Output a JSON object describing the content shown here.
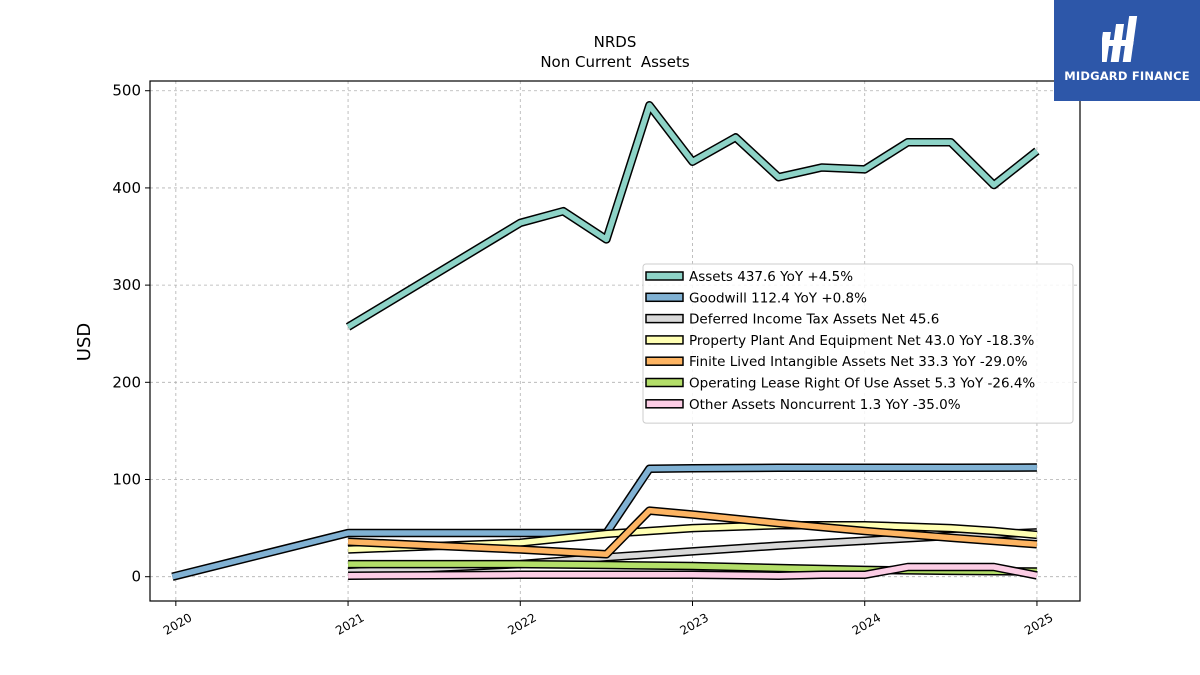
{
  "chart_data": {
    "type": "line",
    "title": "NRDS",
    "subtitle": "Non Current  Assets",
    "ylabel": "USD",
    "xlabel": "",
    "xlim": [
      2019.85,
      2025.25
    ],
    "ylim": [
      -25,
      510
    ],
    "yticks": [
      0,
      100,
      200,
      300,
      400,
      500
    ],
    "xticks": [
      "2020",
      "2021",
      "2022",
      "2023",
      "2024",
      "2025"
    ],
    "grid": true,
    "legend_position": "center-right",
    "series": [
      {
        "name": "Assets",
        "legend": "Assets  437.6 YoY +4.5%",
        "color": "#8dd3c7",
        "points": [
          [
            2021.0,
            257
          ],
          [
            2022.0,
            364
          ],
          [
            2022.25,
            376
          ],
          [
            2022.5,
            347
          ],
          [
            2022.75,
            485
          ],
          [
            2023.0,
            427
          ],
          [
            2023.25,
            452
          ],
          [
            2023.5,
            411
          ],
          [
            2023.75,
            421
          ],
          [
            2024.0,
            419
          ],
          [
            2024.25,
            447
          ],
          [
            2024.5,
            447
          ],
          [
            2024.75,
            403
          ],
          [
            2025.0,
            438
          ]
        ]
      },
      {
        "name": "Goodwill",
        "legend": "Goodwill  112.4 YoY +0.8%",
        "color": "#80b1d3",
        "points": [
          [
            2019.98,
            0
          ],
          [
            2021.0,
            45
          ],
          [
            2022.0,
            45
          ],
          [
            2022.5,
            45
          ],
          [
            2022.75,
            111
          ],
          [
            2023.0,
            111.5
          ],
          [
            2023.5,
            112
          ],
          [
            2024.0,
            112
          ],
          [
            2024.5,
            112
          ],
          [
            2025.0,
            112.4
          ]
        ]
      },
      {
        "name": "Deferred Income Tax Assets Net",
        "legend": "Deferred Income Tax Assets Net  45.6",
        "color": "#d9d9d9",
        "points": [
          [
            2021.0,
            5
          ],
          [
            2022.0,
            13
          ],
          [
            2022.5,
            20
          ],
          [
            2023.0,
            26
          ],
          [
            2023.5,
            32
          ],
          [
            2024.0,
            37
          ],
          [
            2024.5,
            42
          ],
          [
            2025.0,
            45.6
          ]
        ]
      },
      {
        "name": "Property Plant And Equipment Net",
        "legend": "Property Plant And Equipment Net  43.0 YoY -18.3%",
        "color": "#ffffb3",
        "points": [
          [
            2021.0,
            28
          ],
          [
            2022.0,
            35
          ],
          [
            2022.5,
            44
          ],
          [
            2022.75,
            47
          ],
          [
            2023.0,
            50
          ],
          [
            2023.5,
            53
          ],
          [
            2024.0,
            53
          ],
          [
            2024.5,
            50
          ],
          [
            2024.75,
            47
          ],
          [
            2025.0,
            43
          ]
        ]
      },
      {
        "name": "Finite Lived Intangible Assets Net",
        "legend": "Finite Lived Intangible Assets Net  33.3 YoY -29.0%",
        "color": "#fdb462",
        "points": [
          [
            2021.0,
            36
          ],
          [
            2022.0,
            28
          ],
          [
            2022.5,
            23
          ],
          [
            2022.75,
            68
          ],
          [
            2023.0,
            64
          ],
          [
            2023.5,
            55
          ],
          [
            2024.0,
            47
          ],
          [
            2024.5,
            40
          ],
          [
            2025.0,
            33.3
          ]
        ]
      },
      {
        "name": "Operating Lease Right Of Use Asset",
        "legend": "Operating Lease Right Of Use Asset  5.3 YoY -26.4%",
        "color": "#b3de69",
        "points": [
          [
            2021.0,
            13
          ],
          [
            2022.0,
            13
          ],
          [
            2022.5,
            12
          ],
          [
            2023.0,
            11
          ],
          [
            2023.5,
            9
          ],
          [
            2024.0,
            7
          ],
          [
            2024.5,
            6
          ],
          [
            2025.0,
            5.3
          ]
        ]
      },
      {
        "name": "Other Assets Noncurrent",
        "legend": "Other Assets Noncurrent  1.3 YoY -35.0%",
        "color": "#fccde5",
        "points": [
          [
            2021.0,
            1
          ],
          [
            2022.0,
            2
          ],
          [
            2022.5,
            2
          ],
          [
            2023.0,
            2
          ],
          [
            2023.5,
            1
          ],
          [
            2023.75,
            2
          ],
          [
            2024.0,
            2
          ],
          [
            2024.25,
            10
          ],
          [
            2024.5,
            10
          ],
          [
            2024.75,
            10
          ],
          [
            2025.0,
            1.3
          ]
        ]
      }
    ]
  },
  "logo": {
    "text": "MIDGARD FINANCE",
    "background": "#2d57a9"
  }
}
